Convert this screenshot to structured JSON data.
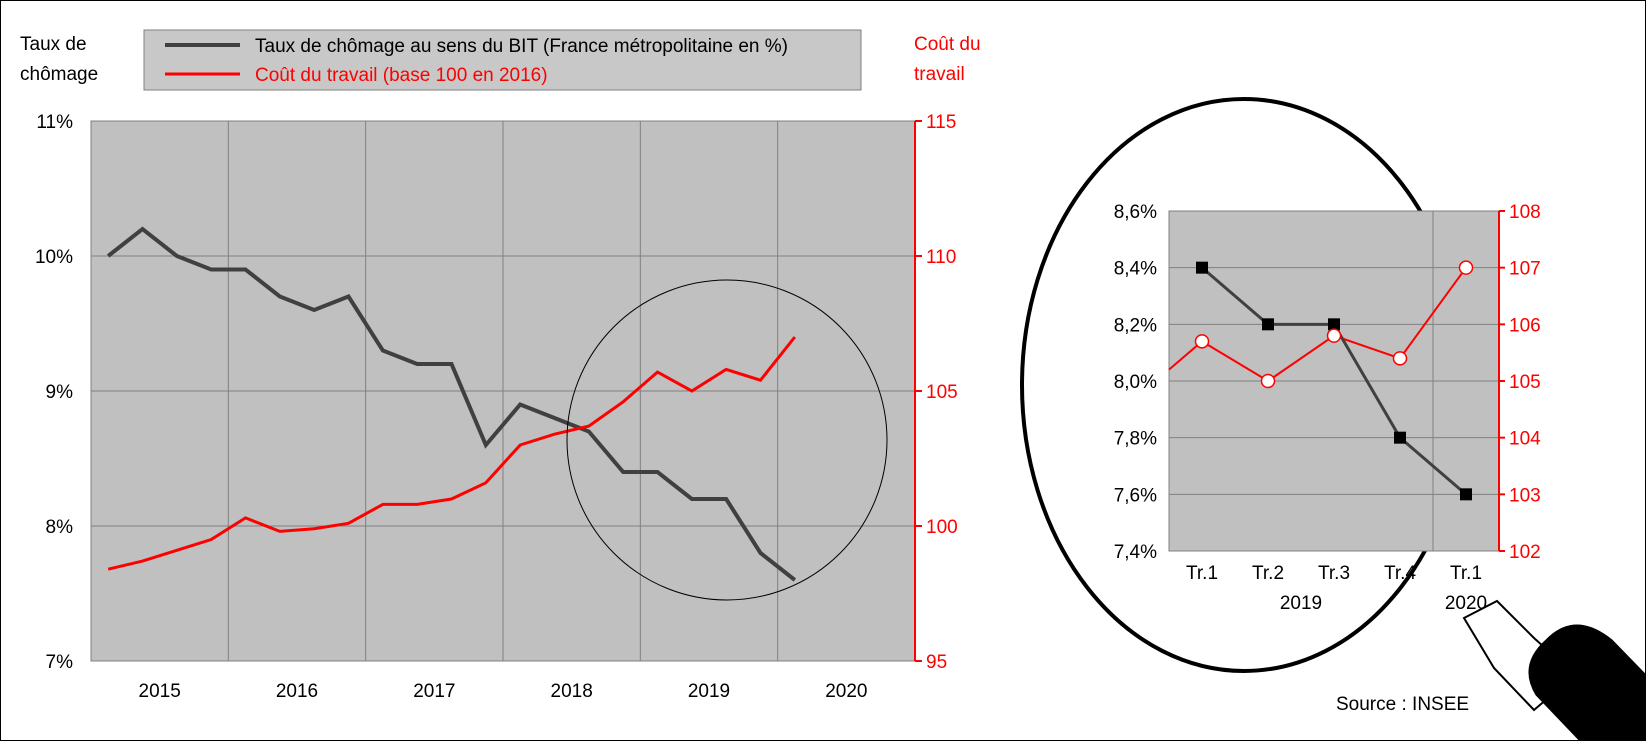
{
  "colors": {
    "unemployment": "#404040",
    "labour_cost": "#ff0000",
    "plot_bg": "#c0c0c0",
    "legend_bg": "#c8c8c8"
  },
  "legend": {
    "unemployment_label": "Taux de chômage au sens du BIT (France métropolitaine en %)",
    "labour_cost_label": "Coût du travail (base 100 en 2016)"
  },
  "axis_titles": {
    "left_line1": "Taux de",
    "left_line2": "chômage",
    "right_line1": "Coût du",
    "right_line2": "travail"
  },
  "source": "Source : INSEE",
  "chart_data": [
    {
      "type": "line",
      "categories": [
        "2015",
        "2016",
        "2017",
        "2018",
        "2019",
        "2020"
      ],
      "yaxis_left": {
        "range": [
          7,
          11
        ],
        "ticks": [
          "7%",
          "8%",
          "9%",
          "10%",
          "11%"
        ]
      },
      "yaxis_right": {
        "range": [
          95,
          115
        ],
        "ticks": [
          "95",
          "100",
          "105",
          "110",
          "115"
        ]
      },
      "x_range": [
        2014.875,
        2020.875
      ],
      "grid": true,
      "series": [
        {
          "name": "Taux de chômage au sens du BIT (France métropolitaine en %)",
          "axis": "left",
          "x": [
            2015.0,
            2015.25,
            2015.5,
            2015.75,
            2016.0,
            2016.25,
            2016.5,
            2016.75,
            2017.0,
            2017.25,
            2017.5,
            2017.75,
            2018.0,
            2018.25,
            2018.5,
            2018.75,
            2019.0,
            2019.25,
            2019.5,
            2019.75,
            2020.0
          ],
          "values": [
            10.0,
            10.2,
            10.0,
            9.9,
            9.9,
            9.7,
            9.6,
            9.7,
            9.3,
            9.2,
            9.2,
            8.6,
            8.9,
            8.8,
            8.7,
            8.4,
            8.4,
            8.2,
            8.2,
            7.8,
            7.6
          ]
        },
        {
          "name": "Coût du travail (base 100 en 2016)",
          "axis": "right",
          "x": [
            2015.0,
            2015.25,
            2015.5,
            2015.75,
            2016.0,
            2016.25,
            2016.5,
            2016.75,
            2017.0,
            2017.25,
            2017.5,
            2017.75,
            2018.0,
            2018.25,
            2018.5,
            2018.75,
            2019.0,
            2019.25,
            2019.5,
            2019.75,
            2020.0
          ],
          "values": [
            98.4,
            98.7,
            99.1,
            99.5,
            100.3,
            99.8,
            99.9,
            100.1,
            100.8,
            100.8,
            101.0,
            101.6,
            103.0,
            103.4,
            103.7,
            104.6,
            105.7,
            105.0,
            105.8,
            105.4,
            107.0
          ]
        }
      ]
    },
    {
      "type": "line",
      "categories": [
        "Tr.1",
        "Tr.2",
        "Tr.3",
        "Tr.4",
        "Tr.1"
      ],
      "category_groups": [
        "2019",
        "2020"
      ],
      "yaxis_left": {
        "range": [
          7.4,
          8.6
        ],
        "ticks": [
          "7,4%",
          "7,6%",
          "7,8%",
          "8,0%",
          "8,2%",
          "8,4%",
          "8,6%"
        ]
      },
      "yaxis_right": {
        "range": [
          102,
          108
        ],
        "ticks": [
          "102",
          "103",
          "104",
          "105",
          "106",
          "107",
          "108"
        ]
      },
      "grid": true,
      "series": [
        {
          "name": "Taux de chômage au sens du BIT (France métropolitaine en %)",
          "axis": "left",
          "values": [
            8.4,
            8.2,
            8.2,
            7.8,
            7.6
          ]
        },
        {
          "name": "Coût du travail (base 100 en 2016)",
          "axis": "right",
          "values": [
            105.7,
            105.0,
            105.8,
            105.4,
            107.0
          ],
          "left_edge_value": 105.2
        }
      ]
    }
  ]
}
